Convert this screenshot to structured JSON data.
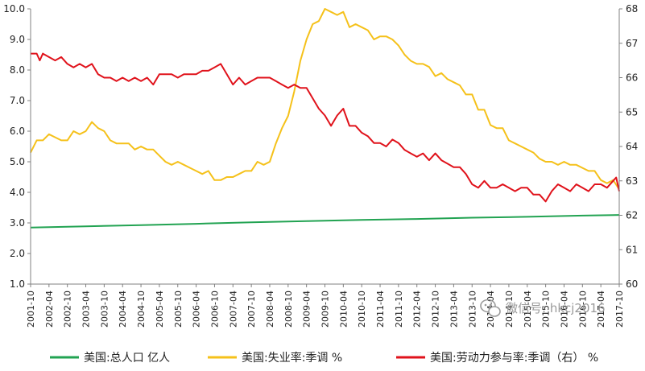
{
  "watermark": {
    "text": "微信号: hkcj2016",
    "icon": "wechat-icon"
  },
  "chart_data": {
    "type": "line",
    "title": "",
    "xlabel": "",
    "ylabel": "",
    "grid": false,
    "legend_position": "bottom",
    "y_left": {
      "ylim": [
        1.0,
        10.0
      ],
      "ticks": [
        "1.0",
        "2.0",
        "3.0",
        "4.0",
        "5.0",
        "6.0",
        "7.0",
        "8.0",
        "9.0",
        "10.0"
      ]
    },
    "y_right": {
      "ylim": [
        60,
        68
      ],
      "ticks": [
        "60",
        "61",
        "62",
        "63",
        "64",
        "65",
        "66",
        "67",
        "68"
      ]
    },
    "x_ticks": [
      "2001-10",
      "2002-04",
      "2002-10",
      "2003-04",
      "2003-10",
      "2004-04",
      "2004-10",
      "2005-04",
      "2005-10",
      "2006-04",
      "2006-10",
      "2007-04",
      "2007-10",
      "2008-04",
      "2008-10",
      "2009-04",
      "2009-10",
      "2010-04",
      "2010-10",
      "2011-04",
      "2011-10",
      "2012-04",
      "2012-10",
      "2013-04",
      "2013-10",
      "2014-04",
      "2014-10",
      "2015-04",
      "2015-10",
      "2016-04",
      "2016-10",
      "2017-04",
      "2017-10"
    ],
    "series": [
      {
        "name": "美国:总人口 亿人",
        "axis": "left",
        "color": "#22a352",
        "points": [
          [
            "2001-10",
            2.85
          ],
          [
            "2003-04",
            2.89
          ],
          [
            "2004-10",
            2.93
          ],
          [
            "2006-04",
            2.97
          ],
          [
            "2007-10",
            3.02
          ],
          [
            "2009-04",
            3.06
          ],
          [
            "2010-10",
            3.1
          ],
          [
            "2012-04",
            3.13
          ],
          [
            "2013-10",
            3.17
          ],
          [
            "2015-04",
            3.2
          ],
          [
            "2016-10",
            3.24
          ],
          [
            "2017-10",
            3.26
          ]
        ]
      },
      {
        "name": "美国:失业率:季调 %",
        "axis": "left",
        "color": "#f5c11a",
        "points": [
          [
            "2001-10",
            5.3
          ],
          [
            "2001-12",
            5.7
          ],
          [
            "2002-02",
            5.7
          ],
          [
            "2002-04",
            5.9
          ],
          [
            "2002-06",
            5.8
          ],
          [
            "2002-08",
            5.7
          ],
          [
            "2002-10",
            5.7
          ],
          [
            "2002-12",
            6.0
          ],
          [
            "2003-02",
            5.9
          ],
          [
            "2003-04",
            6.0
          ],
          [
            "2003-06",
            6.3
          ],
          [
            "2003-08",
            6.1
          ],
          [
            "2003-10",
            6.0
          ],
          [
            "2003-12",
            5.7
          ],
          [
            "2004-02",
            5.6
          ],
          [
            "2004-04",
            5.6
          ],
          [
            "2004-06",
            5.6
          ],
          [
            "2004-08",
            5.4
          ],
          [
            "2004-10",
            5.5
          ],
          [
            "2004-12",
            5.4
          ],
          [
            "2005-02",
            5.4
          ],
          [
            "2005-04",
            5.2
          ],
          [
            "2005-06",
            5.0
          ],
          [
            "2005-08",
            4.9
          ],
          [
            "2005-10",
            5.0
          ],
          [
            "2005-12",
            4.9
          ],
          [
            "2006-02",
            4.8
          ],
          [
            "2006-04",
            4.7
          ],
          [
            "2006-06",
            4.6
          ],
          [
            "2006-08",
            4.7
          ],
          [
            "2006-10",
            4.4
          ],
          [
            "2006-12",
            4.4
          ],
          [
            "2007-02",
            4.5
          ],
          [
            "2007-04",
            4.5
          ],
          [
            "2007-06",
            4.6
          ],
          [
            "2007-08",
            4.7
          ],
          [
            "2007-10",
            4.7
          ],
          [
            "2007-12",
            5.0
          ],
          [
            "2008-02",
            4.9
          ],
          [
            "2008-04",
            5.0
          ],
          [
            "2008-06",
            5.6
          ],
          [
            "2008-08",
            6.1
          ],
          [
            "2008-10",
            6.5
          ],
          [
            "2008-12",
            7.3
          ],
          [
            "2009-02",
            8.3
          ],
          [
            "2009-04",
            9.0
          ],
          [
            "2009-06",
            9.5
          ],
          [
            "2009-08",
            9.6
          ],
          [
            "2009-10",
            10.0
          ],
          [
            "2009-12",
            9.9
          ],
          [
            "2010-02",
            9.8
          ],
          [
            "2010-04",
            9.9
          ],
          [
            "2010-06",
            9.4
          ],
          [
            "2010-08",
            9.5
          ],
          [
            "2010-10",
            9.4
          ],
          [
            "2010-12",
            9.3
          ],
          [
            "2011-02",
            9.0
          ],
          [
            "2011-04",
            9.1
          ],
          [
            "2011-06",
            9.1
          ],
          [
            "2011-08",
            9.0
          ],
          [
            "2011-10",
            8.8
          ],
          [
            "2011-12",
            8.5
          ],
          [
            "2012-02",
            8.3
          ],
          [
            "2012-04",
            8.2
          ],
          [
            "2012-06",
            8.2
          ],
          [
            "2012-08",
            8.1
          ],
          [
            "2012-10",
            7.8
          ],
          [
            "2012-12",
            7.9
          ],
          [
            "2013-02",
            7.7
          ],
          [
            "2013-04",
            7.6
          ],
          [
            "2013-06",
            7.5
          ],
          [
            "2013-08",
            7.2
          ],
          [
            "2013-10",
            7.2
          ],
          [
            "2013-12",
            6.7
          ],
          [
            "2014-02",
            6.7
          ],
          [
            "2014-04",
            6.2
          ],
          [
            "2014-06",
            6.1
          ],
          [
            "2014-08",
            6.1
          ],
          [
            "2014-10",
            5.7
          ],
          [
            "2014-12",
            5.6
          ],
          [
            "2015-02",
            5.5
          ],
          [
            "2015-04",
            5.4
          ],
          [
            "2015-06",
            5.3
          ],
          [
            "2015-08",
            5.1
          ],
          [
            "2015-10",
            5.0
          ],
          [
            "2015-12",
            5.0
          ],
          [
            "2016-02",
            4.9
          ],
          [
            "2016-04",
            5.0
          ],
          [
            "2016-06",
            4.9
          ],
          [
            "2016-08",
            4.9
          ],
          [
            "2016-10",
            4.8
          ],
          [
            "2016-12",
            4.7
          ],
          [
            "2017-02",
            4.7
          ],
          [
            "2017-04",
            4.4
          ],
          [
            "2017-06",
            4.3
          ],
          [
            "2017-08",
            4.4
          ],
          [
            "2017-10",
            4.1
          ]
        ]
      },
      {
        "name": "美国:劳动力参与率:季调（右） %",
        "axis": "right",
        "color": "#e0121b",
        "points": [
          [
            "2001-10",
            66.7
          ],
          [
            "2001-12",
            66.7
          ],
          [
            "2002-01",
            66.5
          ],
          [
            "2002-02",
            66.7
          ],
          [
            "2002-04",
            66.6
          ],
          [
            "2002-06",
            66.5
          ],
          [
            "2002-08",
            66.6
          ],
          [
            "2002-10",
            66.4
          ],
          [
            "2002-12",
            66.3
          ],
          [
            "2003-02",
            66.4
          ],
          [
            "2003-04",
            66.3
          ],
          [
            "2003-06",
            66.4
          ],
          [
            "2003-08",
            66.1
          ],
          [
            "2003-10",
            66.0
          ],
          [
            "2003-12",
            66.0
          ],
          [
            "2004-02",
            65.9
          ],
          [
            "2004-04",
            66.0
          ],
          [
            "2004-06",
            65.9
          ],
          [
            "2004-08",
            66.0
          ],
          [
            "2004-10",
            65.9
          ],
          [
            "2004-12",
            66.0
          ],
          [
            "2005-02",
            65.8
          ],
          [
            "2005-04",
            66.1
          ],
          [
            "2005-06",
            66.1
          ],
          [
            "2005-08",
            66.1
          ],
          [
            "2005-10",
            66.0
          ],
          [
            "2005-12",
            66.1
          ],
          [
            "2006-02",
            66.1
          ],
          [
            "2006-04",
            66.1
          ],
          [
            "2006-06",
            66.2
          ],
          [
            "2006-08",
            66.2
          ],
          [
            "2006-10",
            66.3
          ],
          [
            "2006-12",
            66.4
          ],
          [
            "2007-02",
            66.1
          ],
          [
            "2007-04",
            65.8
          ],
          [
            "2007-06",
            66.0
          ],
          [
            "2007-08",
            65.8
          ],
          [
            "2007-10",
            65.9
          ],
          [
            "2007-12",
            66.0
          ],
          [
            "2008-02",
            66.0
          ],
          [
            "2008-04",
            66.0
          ],
          [
            "2008-06",
            65.9
          ],
          [
            "2008-08",
            65.8
          ],
          [
            "2008-10",
            65.7
          ],
          [
            "2008-12",
            65.8
          ],
          [
            "2009-02",
            65.7
          ],
          [
            "2009-04",
            65.7
          ],
          [
            "2009-06",
            65.4
          ],
          [
            "2009-08",
            65.1
          ],
          [
            "2009-10",
            64.9
          ],
          [
            "2009-12",
            64.6
          ],
          [
            "2010-02",
            64.9
          ],
          [
            "2010-04",
            65.1
          ],
          [
            "2010-06",
            64.6
          ],
          [
            "2010-08",
            64.6
          ],
          [
            "2010-10",
            64.4
          ],
          [
            "2010-12",
            64.3
          ],
          [
            "2011-02",
            64.1
          ],
          [
            "2011-04",
            64.1
          ],
          [
            "2011-06",
            64.0
          ],
          [
            "2011-08",
            64.2
          ],
          [
            "2011-10",
            64.1
          ],
          [
            "2011-12",
            63.9
          ],
          [
            "2012-02",
            63.8
          ],
          [
            "2012-04",
            63.7
          ],
          [
            "2012-06",
            63.8
          ],
          [
            "2012-08",
            63.6
          ],
          [
            "2012-10",
            63.8
          ],
          [
            "2012-12",
            63.6
          ],
          [
            "2013-02",
            63.5
          ],
          [
            "2013-04",
            63.4
          ],
          [
            "2013-06",
            63.4
          ],
          [
            "2013-08",
            63.2
          ],
          [
            "2013-10",
            62.9
          ],
          [
            "2013-12",
            62.8
          ],
          [
            "2014-02",
            63.0
          ],
          [
            "2014-04",
            62.8
          ],
          [
            "2014-06",
            62.8
          ],
          [
            "2014-08",
            62.9
          ],
          [
            "2014-10",
            62.8
          ],
          [
            "2014-12",
            62.7
          ],
          [
            "2015-02",
            62.8
          ],
          [
            "2015-04",
            62.8
          ],
          [
            "2015-06",
            62.6
          ],
          [
            "2015-08",
            62.6
          ],
          [
            "2015-10",
            62.4
          ],
          [
            "2015-12",
            62.7
          ],
          [
            "2016-02",
            62.9
          ],
          [
            "2016-04",
            62.8
          ],
          [
            "2016-06",
            62.7
          ],
          [
            "2016-08",
            62.9
          ],
          [
            "2016-10",
            62.8
          ],
          [
            "2016-12",
            62.7
          ],
          [
            "2017-02",
            62.9
          ],
          [
            "2017-04",
            62.9
          ],
          [
            "2017-06",
            62.8
          ],
          [
            "2017-08",
            63.0
          ],
          [
            "2017-09",
            63.1
          ],
          [
            "2017-10",
            62.7
          ]
        ]
      }
    ]
  }
}
